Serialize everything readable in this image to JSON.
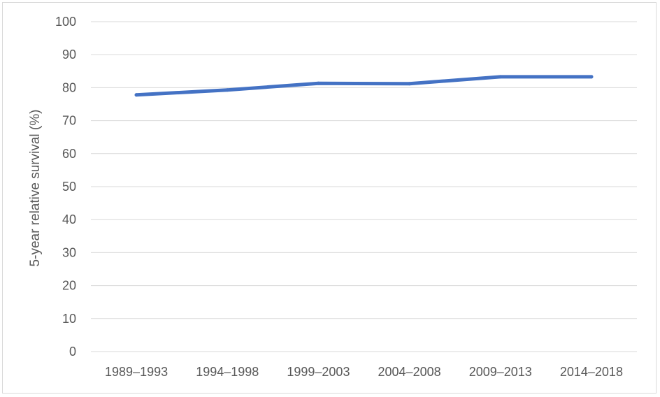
{
  "chart_data": {
    "type": "line",
    "title": "",
    "xlabel": "",
    "ylabel": "5-year relative survival (%)",
    "categories": [
      "1989–1993",
      "1994–1998",
      "1999–2003",
      "2004–2008",
      "2009–2013",
      "2014–2018"
    ],
    "series": [
      {
        "values": [
          77.8,
          79.3,
          81.3,
          81.2,
          83.3,
          83.3
        ],
        "color": "#4472c4"
      }
    ],
    "ylim": [
      0,
      100
    ],
    "yticks": [
      0,
      10,
      20,
      30,
      40,
      50,
      60,
      70,
      80,
      90,
      100
    ],
    "grid": true,
    "legend": "none"
  }
}
